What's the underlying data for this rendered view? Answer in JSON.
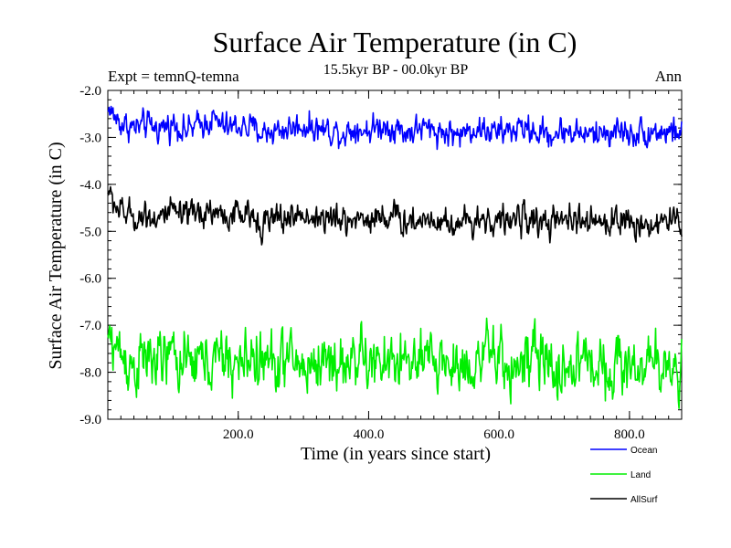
{
  "chart_data": {
    "type": "line",
    "title": "Surface Air Temperature (in C)",
    "subtitle": "15.5kyr BP - 00.0kyr BP",
    "experiment": "Expt = temnQ-temna",
    "season": "Ann",
    "xlabel": "Time (in years since start)",
    "ylabel": "Surface Air Temperature (in C)",
    "xlim": [
      0,
      880
    ],
    "ylim": [
      -9.0,
      -2.0
    ],
    "x_ticks": [
      200,
      400,
      600,
      800
    ],
    "x_tick_labels": [
      "200.0",
      "400.0",
      "600.0",
      "800.0"
    ],
    "y_ticks": [
      -2,
      -3,
      -4,
      -5,
      -6,
      -7,
      -8,
      -9
    ],
    "y_tick_labels": [
      "-2.0",
      "-3.0",
      "-4.0",
      "-5.0",
      "-6.0",
      "-7.0",
      "-8.0",
      "-9.0"
    ],
    "legend_position": "bottom-right",
    "series": [
      {
        "name": "Ocean",
        "color": "#0000ff",
        "mean_start": -2.75,
        "mean_end": -2.9,
        "noise": 0.13,
        "values_every_20yr": [
          -2.4,
          -2.7,
          -2.8,
          -2.75,
          -2.8,
          -2.7,
          -2.85,
          -2.75,
          -2.6,
          -2.8,
          -2.75,
          -2.8,
          -2.9,
          -2.85,
          -2.8,
          -2.75,
          -2.8,
          -2.85,
          -2.9,
          -2.8,
          -2.85,
          -2.75,
          -2.8,
          -2.9,
          -2.8,
          -2.85,
          -2.9,
          -2.95,
          -2.8,
          -2.85,
          -2.9,
          -2.85,
          -2.8,
          -2.9,
          -2.95,
          -2.85,
          -2.9,
          -2.95,
          -2.9,
          -2.85,
          -2.9,
          -2.9,
          -2.85,
          -2.9,
          -2.85
        ]
      },
      {
        "name": "Land",
        "color": "#00ee00",
        "mean_start": -7.75,
        "mean_end": -7.85,
        "noise": 0.28,
        "values_every_20yr": [
          -7.2,
          -7.6,
          -7.9,
          -7.7,
          -7.8,
          -7.6,
          -7.9,
          -7.7,
          -7.8,
          -7.7,
          -7.9,
          -7.6,
          -7.8,
          -7.8,
          -7.7,
          -7.9,
          -7.8,
          -7.7,
          -7.9,
          -7.6,
          -7.8,
          -7.9,
          -7.7,
          -7.8,
          -7.9,
          -7.7,
          -7.8,
          -7.9,
          -7.8,
          -7.6,
          -7.8,
          -7.9,
          -7.8,
          -7.7,
          -7.9,
          -8.0,
          -7.8,
          -7.7,
          -7.9,
          -7.8,
          -7.9,
          -7.8,
          -7.9,
          -7.8,
          -7.9
        ]
      },
      {
        "name": "AllSurf",
        "color": "#000000",
        "mean_start": -4.65,
        "mean_end": -4.8,
        "noise": 0.14,
        "values_every_20yr": [
          -4.2,
          -4.6,
          -4.7,
          -4.65,
          -4.7,
          -4.6,
          -4.75,
          -4.6,
          -4.55,
          -4.7,
          -4.65,
          -4.7,
          -4.8,
          -4.75,
          -4.7,
          -4.65,
          -4.7,
          -4.75,
          -4.8,
          -4.7,
          -4.75,
          -4.65,
          -4.7,
          -4.8,
          -4.75,
          -4.7,
          -4.8,
          -4.85,
          -4.7,
          -4.75,
          -4.8,
          -4.75,
          -4.7,
          -4.8,
          -4.85,
          -4.8,
          -4.75,
          -4.85,
          -4.8,
          -4.75,
          -4.8,
          -4.85,
          -4.8,
          -4.8,
          -4.8
        ]
      }
    ]
  }
}
